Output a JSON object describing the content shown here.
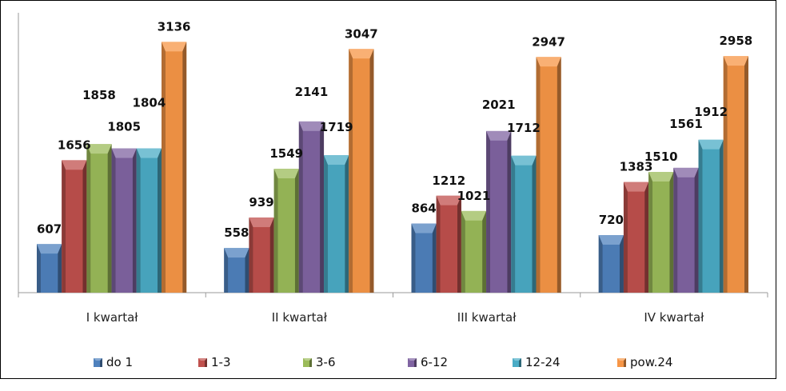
{
  "chart_data": {
    "type": "bar",
    "categories": [
      "I kwartał",
      "II kwartał",
      "III kwartał",
      "IV kwartał"
    ],
    "series": [
      {
        "name": "do 1",
        "values": [
          607,
          558,
          864,
          720
        ],
        "color": "#4F81BD"
      },
      {
        "name": "1-3",
        "values": [
          1656,
          939,
          1212,
          1383
        ],
        "color": "#C0504D"
      },
      {
        "name": "3-6",
        "values": [
          1858,
          1549,
          1021,
          1510
        ],
        "color": "#9BBB59"
      },
      {
        "name": "6-12",
        "values": [
          1805,
          2141,
          2021,
          1561
        ],
        "color": "#8064A2"
      },
      {
        "name": "12-24",
        "values": [
          1804,
          1719,
          1712,
          1912
        ],
        "color": "#4BACC6"
      },
      {
        "name": "pow.24",
        "values": [
          3136,
          3047,
          2947,
          2958
        ],
        "color": "#F79646"
      }
    ],
    "title": "",
    "xlabel": "",
    "ylabel": "",
    "ylim": [
      0,
      3400
    ],
    "grid": false,
    "legend": "bottom",
    "bar_style": "3d-beveled"
  }
}
